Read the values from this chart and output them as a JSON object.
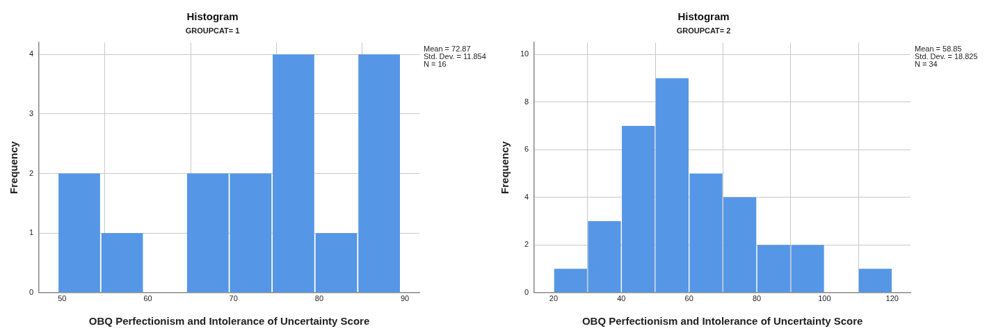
{
  "chart_data": [
    {
      "type": "histogram",
      "title": "Histogram",
      "subtitle": "GROUPCAT= 1",
      "xlabel": "OBQ Perfectionism and Intolerance of Uncertainty Score",
      "ylabel": "Frequency",
      "bins": [
        49.5,
        54.5,
        59.5,
        64.5,
        69.5,
        74.5,
        79.5,
        84.5,
        89.5
      ],
      "values": [
        2,
        1,
        0,
        2,
        2,
        4,
        1,
        4
      ],
      "color": "#5596e6",
      "xlim": [
        47.3,
        91.7
      ],
      "xticks": [
        50,
        60,
        70,
        80,
        90
      ],
      "ylim": [
        0,
        4.2
      ],
      "yticks": [
        0,
        1,
        2,
        3,
        4
      ],
      "grid": true,
      "legend": false,
      "annotations": [
        "Mean = 72.87",
        "Std. Dev. = 11.854",
        "N = 16"
      ]
    },
    {
      "type": "histogram",
      "title": "Histogram",
      "subtitle": "GROUPCAT= 2",
      "xlabel": "OBQ Perfectionism and Intolerance of Uncertainty Score",
      "ylabel": "Frequency",
      "bins": [
        20,
        30,
        40,
        50,
        60,
        70,
        80,
        90,
        100,
        110,
        120
      ],
      "values": [
        1,
        3,
        7,
        9,
        5,
        4,
        2,
        2,
        0,
        1
      ],
      "color": "#5596e6",
      "xlim": [
        14.3,
        125.4
      ],
      "xticks": [
        20,
        40,
        60,
        80,
        100,
        120
      ],
      "ylim": [
        0,
        10.5
      ],
      "yticks": [
        0,
        2,
        4,
        6,
        8,
        10
      ],
      "grid": true,
      "legend": false,
      "annotations": [
        "Mean = 58.85",
        "Std. Dev. = 18.825",
        "N = 34"
      ]
    }
  ]
}
